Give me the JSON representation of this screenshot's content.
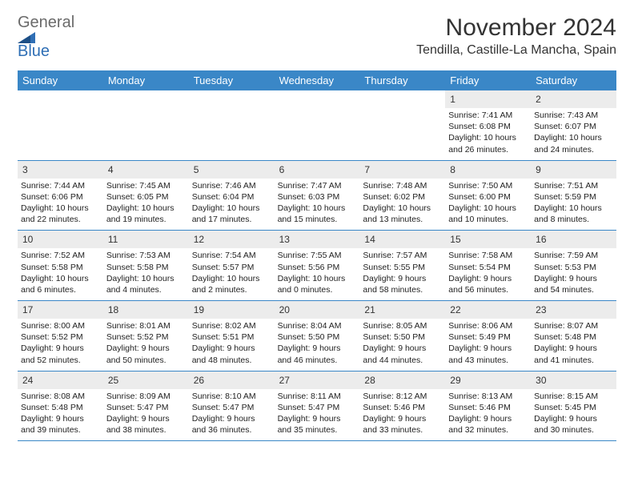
{
  "logo": {
    "word1": "General",
    "word2": "Blue"
  },
  "title": "November 2024",
  "location": "Tendilla, Castille-La Mancha, Spain",
  "colors": {
    "header_bg": "#3a87c7",
    "header_text": "#ffffff",
    "row_border": "#3a87c7",
    "daynum_bg": "#ececec",
    "logo_gray": "#6a6a6a",
    "logo_blue": "#2f6fb5"
  },
  "day_names": [
    "Sunday",
    "Monday",
    "Tuesday",
    "Wednesday",
    "Thursday",
    "Friday",
    "Saturday"
  ],
  "weeks": [
    [
      {
        "n": "",
        "lines": []
      },
      {
        "n": "",
        "lines": []
      },
      {
        "n": "",
        "lines": []
      },
      {
        "n": "",
        "lines": []
      },
      {
        "n": "",
        "lines": []
      },
      {
        "n": "1",
        "lines": [
          "Sunrise: 7:41 AM",
          "Sunset: 6:08 PM",
          "Daylight: 10 hours and 26 minutes."
        ]
      },
      {
        "n": "2",
        "lines": [
          "Sunrise: 7:43 AM",
          "Sunset: 6:07 PM",
          "Daylight: 10 hours and 24 minutes."
        ]
      }
    ],
    [
      {
        "n": "3",
        "lines": [
          "Sunrise: 7:44 AM",
          "Sunset: 6:06 PM",
          "Daylight: 10 hours and 22 minutes."
        ]
      },
      {
        "n": "4",
        "lines": [
          "Sunrise: 7:45 AM",
          "Sunset: 6:05 PM",
          "Daylight: 10 hours and 19 minutes."
        ]
      },
      {
        "n": "5",
        "lines": [
          "Sunrise: 7:46 AM",
          "Sunset: 6:04 PM",
          "Daylight: 10 hours and 17 minutes."
        ]
      },
      {
        "n": "6",
        "lines": [
          "Sunrise: 7:47 AM",
          "Sunset: 6:03 PM",
          "Daylight: 10 hours and 15 minutes."
        ]
      },
      {
        "n": "7",
        "lines": [
          "Sunrise: 7:48 AM",
          "Sunset: 6:02 PM",
          "Daylight: 10 hours and 13 minutes."
        ]
      },
      {
        "n": "8",
        "lines": [
          "Sunrise: 7:50 AM",
          "Sunset: 6:00 PM",
          "Daylight: 10 hours and 10 minutes."
        ]
      },
      {
        "n": "9",
        "lines": [
          "Sunrise: 7:51 AM",
          "Sunset: 5:59 PM",
          "Daylight: 10 hours and 8 minutes."
        ]
      }
    ],
    [
      {
        "n": "10",
        "lines": [
          "Sunrise: 7:52 AM",
          "Sunset: 5:58 PM",
          "Daylight: 10 hours and 6 minutes."
        ]
      },
      {
        "n": "11",
        "lines": [
          "Sunrise: 7:53 AM",
          "Sunset: 5:58 PM",
          "Daylight: 10 hours and 4 minutes."
        ]
      },
      {
        "n": "12",
        "lines": [
          "Sunrise: 7:54 AM",
          "Sunset: 5:57 PM",
          "Daylight: 10 hours and 2 minutes."
        ]
      },
      {
        "n": "13",
        "lines": [
          "Sunrise: 7:55 AM",
          "Sunset: 5:56 PM",
          "Daylight: 10 hours and 0 minutes."
        ]
      },
      {
        "n": "14",
        "lines": [
          "Sunrise: 7:57 AM",
          "Sunset: 5:55 PM",
          "Daylight: 9 hours and 58 minutes."
        ]
      },
      {
        "n": "15",
        "lines": [
          "Sunrise: 7:58 AM",
          "Sunset: 5:54 PM",
          "Daylight: 9 hours and 56 minutes."
        ]
      },
      {
        "n": "16",
        "lines": [
          "Sunrise: 7:59 AM",
          "Sunset: 5:53 PM",
          "Daylight: 9 hours and 54 minutes."
        ]
      }
    ],
    [
      {
        "n": "17",
        "lines": [
          "Sunrise: 8:00 AM",
          "Sunset: 5:52 PM",
          "Daylight: 9 hours and 52 minutes."
        ]
      },
      {
        "n": "18",
        "lines": [
          "Sunrise: 8:01 AM",
          "Sunset: 5:52 PM",
          "Daylight: 9 hours and 50 minutes."
        ]
      },
      {
        "n": "19",
        "lines": [
          "Sunrise: 8:02 AM",
          "Sunset: 5:51 PM",
          "Daylight: 9 hours and 48 minutes."
        ]
      },
      {
        "n": "20",
        "lines": [
          "Sunrise: 8:04 AM",
          "Sunset: 5:50 PM",
          "Daylight: 9 hours and 46 minutes."
        ]
      },
      {
        "n": "21",
        "lines": [
          "Sunrise: 8:05 AM",
          "Sunset: 5:50 PM",
          "Daylight: 9 hours and 44 minutes."
        ]
      },
      {
        "n": "22",
        "lines": [
          "Sunrise: 8:06 AM",
          "Sunset: 5:49 PM",
          "Daylight: 9 hours and 43 minutes."
        ]
      },
      {
        "n": "23",
        "lines": [
          "Sunrise: 8:07 AM",
          "Sunset: 5:48 PM",
          "Daylight: 9 hours and 41 minutes."
        ]
      }
    ],
    [
      {
        "n": "24",
        "lines": [
          "Sunrise: 8:08 AM",
          "Sunset: 5:48 PM",
          "Daylight: 9 hours and 39 minutes."
        ]
      },
      {
        "n": "25",
        "lines": [
          "Sunrise: 8:09 AM",
          "Sunset: 5:47 PM",
          "Daylight: 9 hours and 38 minutes."
        ]
      },
      {
        "n": "26",
        "lines": [
          "Sunrise: 8:10 AM",
          "Sunset: 5:47 PM",
          "Daylight: 9 hours and 36 minutes."
        ]
      },
      {
        "n": "27",
        "lines": [
          "Sunrise: 8:11 AM",
          "Sunset: 5:47 PM",
          "Daylight: 9 hours and 35 minutes."
        ]
      },
      {
        "n": "28",
        "lines": [
          "Sunrise: 8:12 AM",
          "Sunset: 5:46 PM",
          "Daylight: 9 hours and 33 minutes."
        ]
      },
      {
        "n": "29",
        "lines": [
          "Sunrise: 8:13 AM",
          "Sunset: 5:46 PM",
          "Daylight: 9 hours and 32 minutes."
        ]
      },
      {
        "n": "30",
        "lines": [
          "Sunrise: 8:15 AM",
          "Sunset: 5:45 PM",
          "Daylight: 9 hours and 30 minutes."
        ]
      }
    ]
  ]
}
